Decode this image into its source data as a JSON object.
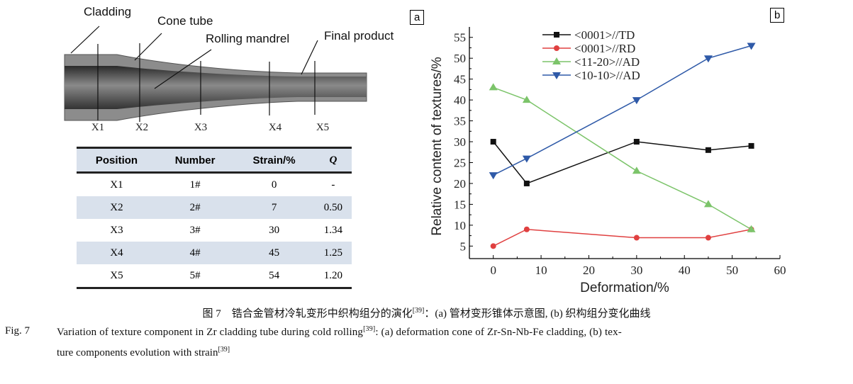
{
  "panel_a": {
    "tag": "a",
    "labels": {
      "cladding": "Cladding",
      "cone_tube": "Cone tube",
      "rolling_mandrel": "Rolling mandrel",
      "final_product": "Final product"
    },
    "positions": [
      "X1",
      "X2",
      "X3",
      "X4",
      "X5"
    ],
    "table": {
      "headers": [
        "Position",
        "Number",
        "Strain/%",
        "Q"
      ],
      "rows": [
        [
          "X1",
          "1#",
          "0",
          "-"
        ],
        [
          "X2",
          "2#",
          "7",
          "0.50"
        ],
        [
          "X3",
          "3#",
          "30",
          "1.34"
        ],
        [
          "X4",
          "4#",
          "45",
          "1.25"
        ],
        [
          "X5",
          "5#",
          "54",
          "1.20"
        ]
      ]
    }
  },
  "panel_b": {
    "tag": "b"
  },
  "chart_data": {
    "type": "line",
    "xlabel": "Deformation/%",
    "ylabel": "Relative content of textures/%",
    "xlim": [
      -5,
      60
    ],
    "ylim": [
      2,
      57.5
    ],
    "xticks": [
      0,
      10,
      20,
      30,
      40,
      50,
      60
    ],
    "yticks": [
      5,
      10,
      15,
      20,
      25,
      30,
      35,
      40,
      45,
      50,
      55
    ],
    "legend": "top-left",
    "x": [
      0,
      7,
      30,
      45,
      54
    ],
    "series": [
      {
        "name": "<0001>//TD",
        "values": [
          30,
          20,
          30,
          28,
          29
        ],
        "color": "#111111",
        "marker": "square"
      },
      {
        "name": "<0001>//RD",
        "values": [
          5,
          9,
          7,
          7,
          9
        ],
        "color": "#e04040",
        "marker": "circle"
      },
      {
        "name": "<11-20>//AD",
        "values": [
          43,
          40,
          23,
          15,
          9
        ],
        "color": "#7cc46a",
        "marker": "triangle-up"
      },
      {
        "name": "<10-10>//AD",
        "values": [
          22,
          26,
          40,
          50,
          53
        ],
        "color": "#2f5aa8",
        "marker": "triangle-down"
      }
    ]
  },
  "caption": {
    "zh": "图 7　锆合金管材冷轧变形中织构组分的演化",
    "zh_ref": "[39]",
    "zh_rest": "：(a) 管材变形锥体示意图, (b) 织构组分变化曲线",
    "en_label": "Fig. 7",
    "en_1": "Variation of texture component in Zr cladding tube during cold rolling",
    "en_ref1": "[39]",
    "en_1_rest": ": (a) deformation cone of Zr-Sn-Nb-Fe cladding, (b) tex-",
    "en_2": "ture components evolution with strain",
    "en_ref2": "[39]"
  }
}
